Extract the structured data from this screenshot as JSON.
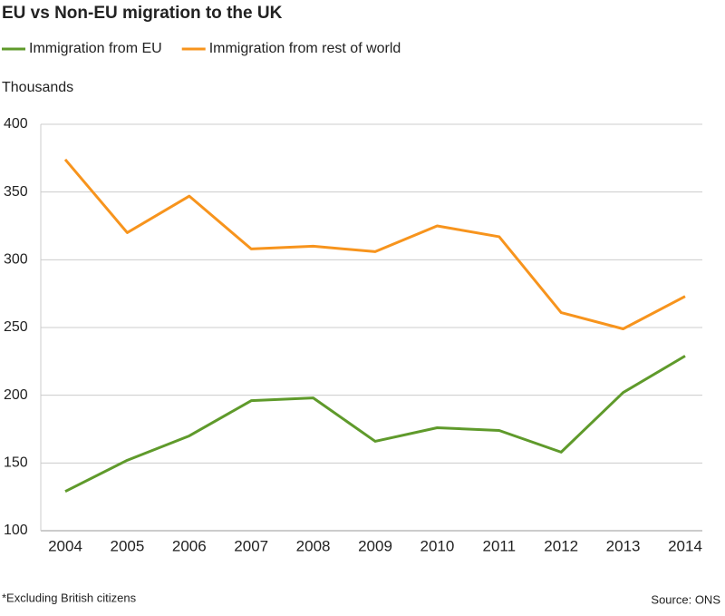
{
  "chart_data": {
    "type": "line",
    "title": "EU vs Non-EU migration to the UK",
    "y_label": "Thousands",
    "footnote": "*Excluding British citizens",
    "source": "Source: ONS",
    "categories": [
      "2004",
      "2005",
      "2006",
      "2007",
      "2008",
      "2009",
      "2010",
      "2011",
      "2012",
      "2013",
      "2014"
    ],
    "series": [
      {
        "name": "Immigration from EU",
        "color": "#5f9a2b",
        "values": [
          129,
          152,
          170,
          196,
          198,
          166,
          176,
          174,
          158,
          202,
          229
        ]
      },
      {
        "name": "Immigration from rest of world",
        "color": "#f7941d",
        "values": [
          374,
          320,
          347,
          308,
          310,
          306,
          325,
          317,
          261,
          249,
          273
        ]
      }
    ],
    "ylim": [
      100,
      400
    ],
    "yticks": [
      100,
      150,
      200,
      250,
      300,
      350,
      400
    ],
    "grid": true
  }
}
